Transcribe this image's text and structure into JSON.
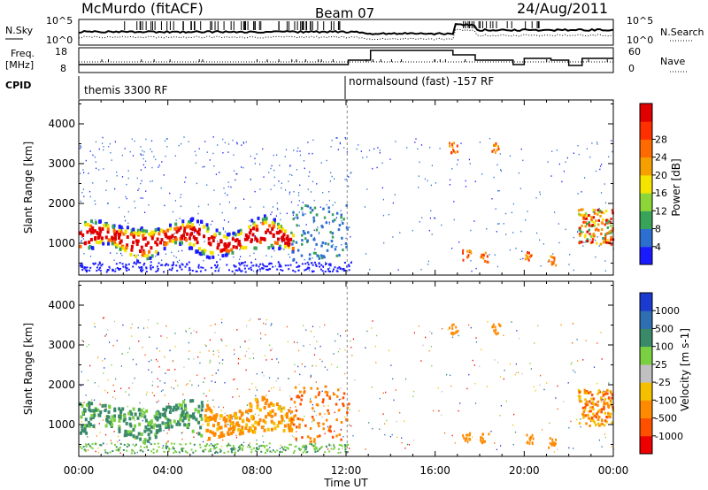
{
  "header": {
    "station": "McMurdo (fitACF)",
    "beam": "Beam 07",
    "date": "24/Aug/2011"
  },
  "noise_panel": {
    "left_label": "N.Sky",
    "left_ticks": [
      "10^5",
      "10^0"
    ],
    "right_ticks": [
      "10^5",
      "10^0"
    ],
    "right_label": "N.Search"
  },
  "freq_panel": {
    "left_label_1": "Freq.",
    "left_label_2": "[MHz]",
    "left_ticks": [
      "18",
      "8"
    ],
    "right_ticks": [
      "60",
      "0"
    ],
    "right_label": "Nave"
  },
  "cpid": {
    "label": "CPID",
    "program_1": "themis 3300 RF",
    "program_2": "normalsound (fast) -157 RF"
  },
  "chart_data": [
    {
      "type": "heatmap",
      "title": "",
      "ylabel": "Slant Range [km]",
      "xlabel": "",
      "x_ticks": [
        "00:00",
        "04:00",
        "08:00",
        "12:00",
        "16:00",
        "20:00",
        "00:00"
      ],
      "y_ticks": [
        "1000",
        "2000",
        "3000",
        "4000"
      ],
      "ylim": [
        200,
        4600
      ],
      "xlim_hours": [
        0,
        24
      ],
      "colorbar": {
        "label": "Power [dB]",
        "ticks": [
          "4",
          "8",
          "12",
          "16",
          "20",
          "24",
          "28"
        ],
        "colors": [
          "#1a1aff",
          "#2d6fd0",
          "#3aa35a",
          "#8cd63a",
          "#f5e400",
          "#f5a000",
          "#ff6a00",
          "#ff3000",
          "#e00000"
        ]
      }
    },
    {
      "type": "heatmap",
      "title": "",
      "ylabel": "Slant Range [km]",
      "xlabel": "Time UT",
      "x_ticks": [
        "00:00",
        "04:00",
        "08:00",
        "12:00",
        "16:00",
        "20:00",
        "00:00"
      ],
      "y_ticks": [
        "1000",
        "2000",
        "3000",
        "4000"
      ],
      "ylim": [
        200,
        4600
      ],
      "xlim_hours": [
        0,
        24
      ],
      "colorbar": {
        "label": "Velocity [m s-1]",
        "ticks": [
          "1000",
          "500",
          "100",
          "25",
          "-25",
          "-100",
          "-500",
          "-1000"
        ],
        "colors": [
          "#1a3ad0",
          "#2d6fb0",
          "#3a8a6a",
          "#7ad040",
          "#c0c0c0",
          "#f5c000",
          "#ff8a00",
          "#ff5000",
          "#ee0000"
        ]
      }
    }
  ]
}
